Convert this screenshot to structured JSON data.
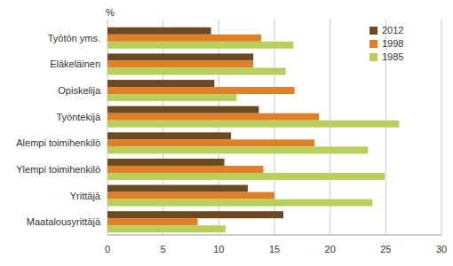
{
  "chart_data": {
    "type": "bar",
    "orientation": "horizontal",
    "xlabel": "%",
    "categories": [
      "Työtön yms.",
      "Eläkeläinen",
      "Opiskelija",
      "Työntekijä",
      "Alempi toimihenkilö",
      "Ylempi toimihenkilö",
      "Yrittäjä",
      "Maatalousyrittäjä"
    ],
    "series": [
      {
        "name": "2012",
        "color": "#6b4a22",
        "values": [
          9.3,
          13.1,
          9.6,
          13.6,
          11.1,
          10.5,
          12.6,
          15.8
        ]
      },
      {
        "name": "1998",
        "color": "#e07f26",
        "values": [
          13.8,
          13.1,
          16.8,
          19.0,
          18.6,
          14.0,
          15.0,
          8.1
        ]
      },
      {
        "name": "1985",
        "color": "#b9cf5b",
        "values": [
          16.7,
          16.0,
          11.6,
          26.2,
          23.4,
          24.9,
          23.8,
          10.6
        ]
      }
    ],
    "xlim": [
      0,
      30
    ],
    "xticks": [
      0,
      5,
      10,
      15,
      20,
      25,
      30
    ],
    "grid": true,
    "legend": "upper right"
  }
}
